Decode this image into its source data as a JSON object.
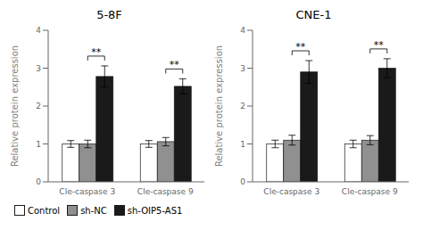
{
  "chart_data": [
    {
      "type": "bar",
      "title": "5-8F",
      "ylabel": "Relative protein expression",
      "categories": [
        "Cle-caspase 3",
        "Cle-caspase 9"
      ],
      "series": [
        {
          "name": "Control",
          "color": "#ffffff",
          "values": [
            1.0,
            1.0
          ],
          "errors": [
            0.09,
            0.09
          ]
        },
        {
          "name": "sh-NC",
          "color": "#909090",
          "values": [
            1.0,
            1.06
          ],
          "errors": [
            0.1,
            0.11
          ]
        },
        {
          "name": "sh-OIP5-AS1",
          "color": "#1a1a1a",
          "values": [
            2.78,
            2.52
          ],
          "errors": [
            0.28,
            0.2
          ]
        }
      ],
      "annotations": [
        {
          "text": "**",
          "category": "Cle-caspase 3",
          "from": "sh-NC",
          "to": "sh-OIP5-AS1"
        },
        {
          "text": "**",
          "category": "Cle-caspase 9",
          "from": "sh-NC",
          "to": "sh-OIP5-AS1"
        }
      ],
      "ylim": [
        0,
        4
      ],
      "yticks": [
        0,
        1,
        2,
        3,
        4
      ],
      "legend": "lower left"
    },
    {
      "type": "bar",
      "title": "CNE-1",
      "ylabel": "Relative protein expression",
      "categories": [
        "Cle-caspase 3",
        "Cle-caspase 9"
      ],
      "series": [
        {
          "name": "Control",
          "color": "#ffffff",
          "values": [
            1.0,
            1.0
          ],
          "errors": [
            0.1,
            0.1
          ]
        },
        {
          "name": "sh-NC",
          "color": "#909090",
          "values": [
            1.1,
            1.1
          ],
          "errors": [
            0.13,
            0.12
          ]
        },
        {
          "name": "sh-OIP5-AS1",
          "color": "#1a1a1a",
          "values": [
            2.9,
            3.0
          ],
          "errors": [
            0.3,
            0.25
          ]
        }
      ],
      "annotations": [
        {
          "text": "**",
          "category": "Cle-caspase 3",
          "from": "sh-NC",
          "to": "sh-OIP5-AS1"
        },
        {
          "text": "**",
          "category": "Cle-caspase 9",
          "from": "sh-NC",
          "to": "sh-OIP5-AS1"
        }
      ],
      "ylim": [
        0,
        4
      ],
      "yticks": [
        0,
        1,
        2,
        3,
        4
      ]
    }
  ]
}
